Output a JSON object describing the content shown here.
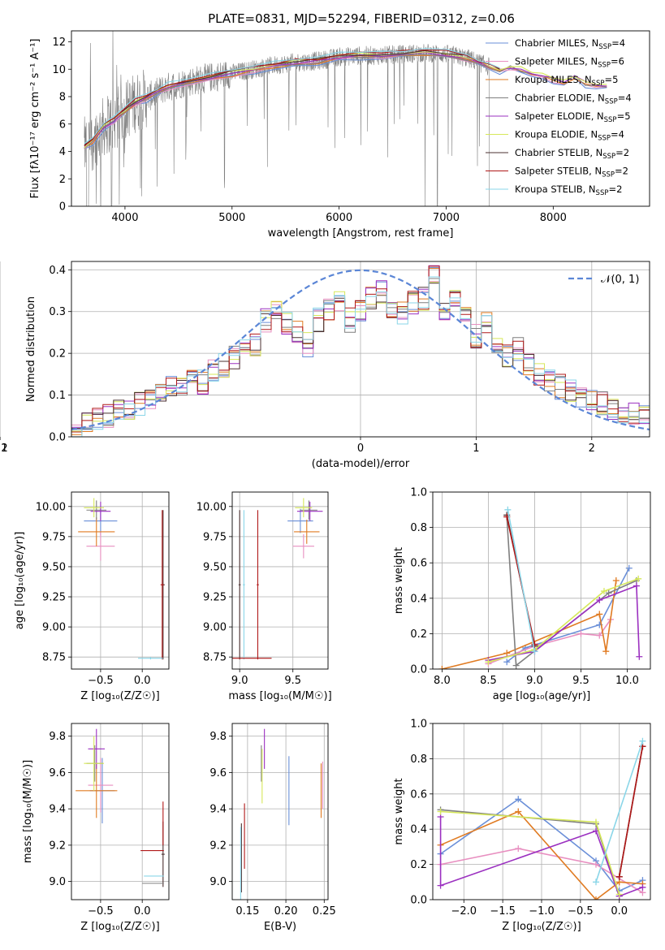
{
  "title": "PLATE=0831, MJD=52294, FIBERID=0312, z=0.06",
  "colors": {
    "Chabrier MILES": "#6a8fd8",
    "Salpeter MILES": "#e88fc0",
    "Kroupa MILES": "#e07b22",
    "Chabrier ELODIE": "#7f7f7f",
    "Salpeter ELODIE": "#9b30c0",
    "Kroupa ELODIE": "#d6e85a",
    "Chabrier STELIB": "#4b3030",
    "Salpeter STELIB": "#b01818",
    "Kroupa STELIB": "#8ad6e8",
    "gaussian": "#5b86d6",
    "observed": "#808080",
    "grid": "#b0b0b0"
  },
  "chart_data": [
    {
      "id": "spectrum",
      "type": "line",
      "title": "PLATE=0831, MJD=52294, FIBERID=0312, z=0.06",
      "xlabel": "wavelength [Angstrom, rest frame]",
      "ylabel": "Flux [f_λ 10^-17 erg cm^-2 s^-1 A^-1]",
      "xlim": [
        3500,
        8900
      ],
      "ylim": [
        0,
        12.8
      ],
      "xticks": [
        "4000",
        "5000",
        "6000",
        "7000",
        "8000"
      ],
      "yticks": [
        "0",
        "2",
        "4",
        "6",
        "8",
        "10",
        "12"
      ],
      "grid": false,
      "legend_position": "right",
      "legend": [
        {
          "label": "Chabrier MILES, N",
          "sub": "SSP",
          "tail": "=4",
          "color": "#6a8fd8"
        },
        {
          "label": "Salpeter MILES, N",
          "sub": "SSP",
          "tail": "=6",
          "color": "#e88fc0"
        },
        {
          "label": "Kroupa MILES, N",
          "sub": "SSP",
          "tail": "=5",
          "color": "#e07b22"
        },
        {
          "label": "Chabrier ELODIE, N",
          "sub": "SSP",
          "tail": "=4",
          "color": "#7f7f7f"
        },
        {
          "label": "Salpeter ELODIE, N",
          "sub": "SSP",
          "tail": "=5",
          "color": "#9b30c0"
        },
        {
          "label": "Kroupa ELODIE, N",
          "sub": "SSP",
          "tail": "=4",
          "color": "#d6e85a"
        },
        {
          "label": "Chabrier STELIB, N",
          "sub": "SSP",
          "tail": "=2",
          "color": "#4b3030"
        },
        {
          "label": "Salpeter STELIB, N",
          "sub": "SSP",
          "tail": "=2",
          "color": "#b01818"
        },
        {
          "label": "Kroupa STELIB, N",
          "sub": "SSP",
          "tail": "=2",
          "color": "#8ad6e8"
        }
      ],
      "model_curve": {
        "x": [
          3620,
          3700,
          3800,
          3900,
          4000,
          4100,
          4200,
          4300,
          4400,
          4600,
          4800,
          5000,
          5200,
          5400,
          5600,
          5800,
          6000,
          6200,
          6400,
          6600,
          6800,
          7000,
          7200,
          7300,
          7400,
          7500,
          7600,
          7700,
          7800,
          7900,
          8000,
          8100,
          8200,
          8300,
          8400,
          8500
        ],
        "y": [
          4.3,
          4.8,
          5.8,
          6.3,
          7.0,
          7.6,
          7.9,
          8.3,
          8.7,
          9.1,
          9.4,
          9.7,
          10.0,
          10.3,
          10.5,
          10.6,
          10.9,
          11.0,
          11.0,
          11.1,
          11.2,
          11.1,
          10.8,
          10.5,
          10.2,
          9.9,
          10.2,
          10.0,
          9.7,
          9.6,
          9.3,
          9.1,
          9.5,
          9.0,
          8.9,
          8.8
        ]
      }
    },
    {
      "id": "residual-hist",
      "type": "line",
      "xlabel": "(data-model)/error",
      "ylabel": "Normed distribution",
      "xlim": [
        -2.5,
        2.5
      ],
      "ylim": [
        0,
        0.42
      ],
      "xticks": [
        "−2",
        "−1",
        "0",
        "1",
        "2"
      ],
      "yticks": [
        "0.0",
        "0.1",
        "0.2",
        "0.3",
        "0.4"
      ],
      "grid": true,
      "legend_position": "top-right",
      "legend_label": "𝒩(0, 1)",
      "hist_template": [
        0.03,
        0.035,
        0.04,
        0.05,
        0.06,
        0.065,
        0.08,
        0.09,
        0.1,
        0.12,
        0.12,
        0.15,
        0.13,
        0.16,
        0.17,
        0.19,
        0.21,
        0.22,
        0.28,
        0.3,
        0.27,
        0.25,
        0.22,
        0.28,
        0.3,
        0.32,
        0.28,
        0.3,
        0.33,
        0.35,
        0.31,
        0.3,
        0.32,
        0.33,
        0.38,
        0.3,
        0.34,
        0.29,
        0.24,
        0.27,
        0.23,
        0.19,
        0.21,
        0.17,
        0.15,
        0.13,
        0.12,
        0.11,
        0.1,
        0.09,
        0.08,
        0.07,
        0.06,
        0.055,
        0.05
      ]
    },
    {
      "id": "age-vs-Z",
      "type": "scatter",
      "xlabel": "Z [log₁₀(Z/Z☉)]",
      "ylabel": "age  [log₁₀(age/yr)]",
      "xlim": [
        -0.85,
        0.32
      ],
      "ylim": [
        8.65,
        10.12
      ],
      "xticks": [
        -0.5,
        0.0
      ],
      "xticklabels": [
        "−0.5",
        "0.0"
      ],
      "yticks": [
        8.75,
        9.0,
        9.25,
        9.5,
        9.75,
        10.0
      ],
      "yticklabels": [
        "8.75",
        "9.00",
        "9.25",
        "9.50",
        "9.75",
        "10.00"
      ],
      "grid": true,
      "points": [
        {
          "series": "Chabrier MILES",
          "x": -0.5,
          "xerr": 0.2,
          "y": 9.88,
          "yerr": 0.12
        },
        {
          "series": "Salpeter MILES",
          "x": -0.5,
          "xerr": 0.17,
          "y": 9.67,
          "yerr": 0.12
        },
        {
          "series": "Kroupa MILES",
          "x": -0.55,
          "xerr": 0.22,
          "y": 9.79,
          "yerr": 0.12
        },
        {
          "series": "Chabrier ELODIE",
          "x": -0.55,
          "xerr": 0.12,
          "y": 9.97,
          "yerr": 0.08
        },
        {
          "series": "Salpeter ELODIE",
          "x": -0.5,
          "xerr": 0.12,
          "y": 9.96,
          "yerr": 0.08
        },
        {
          "series": "Kroupa ELODIE",
          "x": -0.58,
          "xerr": 0.12,
          "y": 9.99,
          "yerr": 0.08
        },
        {
          "series": "Chabrier STELIB",
          "x": 0.25,
          "xerr": 0.02,
          "y": 9.35,
          "yerr": 0.62
        },
        {
          "series": "Salpeter STELIB",
          "x": 0.24,
          "xerr": 0.02,
          "y": 9.35,
          "yerr": 0.62
        },
        {
          "series": "Kroupa STELIB",
          "x": 0.1,
          "xerr": 0.15,
          "y": 8.74,
          "yerr": 0.01
        }
      ]
    },
    {
      "id": "age-vs-mass",
      "type": "scatter",
      "xlabel": "mass [log₁₀(M/M☉)]",
      "ylabel": "",
      "xlim": [
        8.93,
        9.83
      ],
      "ylim": [
        8.65,
        10.12
      ],
      "xticks": [
        9.0,
        9.5
      ],
      "xticklabels": [
        "9.0",
        "9.5"
      ],
      "yticks": [
        8.75,
        9.0,
        9.25,
        9.5,
        9.75,
        10.0
      ],
      "yticklabels": [
        "8.75",
        "9.00",
        "9.25",
        "9.50",
        "9.75",
        "10.00"
      ],
      "grid": true,
      "points": [
        {
          "series": "Chabrier MILES",
          "x": 9.57,
          "xerr": 0.12,
          "y": 9.88,
          "yerr": 0.1
        },
        {
          "series": "Salpeter MILES",
          "x": 9.6,
          "xerr": 0.1,
          "y": 9.67,
          "yerr": 0.1
        },
        {
          "series": "Kroupa MILES",
          "x": 9.63,
          "xerr": 0.12,
          "y": 9.79,
          "yerr": 0.1
        },
        {
          "series": "Chabrier ELODIE",
          "x": 9.65,
          "xerr": 0.08,
          "y": 9.97,
          "yerr": 0.08
        },
        {
          "series": "Salpeter ELODIE",
          "x": 9.66,
          "xerr": 0.12,
          "y": 9.96,
          "yerr": 0.08
        },
        {
          "series": "Kroupa ELODIE",
          "x": 9.6,
          "xerr": 0.08,
          "y": 9.99,
          "yerr": 0.08
        },
        {
          "series": "Chabrier STELIB",
          "x": 9.0,
          "xerr": 0.01,
          "y": 9.35,
          "yerr": 0.62
        },
        {
          "series": "Salpeter STELIB",
          "x": 9.17,
          "xerr": 0.01,
          "y": 9.35,
          "yerr": 0.62
        },
        {
          "series": "Kroupa STELIB",
          "x": 9.04,
          "xerr": 0.01,
          "y": 9.35,
          "yerr": 0.62
        },
        {
          "series": "Salpeter STELIB",
          "x": 9.1,
          "xerr": 0.2,
          "y": 8.74,
          "yerr": 0.0
        }
      ]
    },
    {
      "id": "weight-vs-age",
      "type": "line",
      "xlabel": "age  [log₁₀(age/yr)]",
      "ylabel": "mass weight",
      "xlim": [
        7.9,
        10.25
      ],
      "ylim": [
        0,
        1.0
      ],
      "xticks": [
        8.0,
        8.5,
        9.0,
        9.5,
        10.0
      ],
      "xticklabels": [
        "8.0",
        "8.5",
        "9.0",
        "9.5",
        "10.0"
      ],
      "yticks": [
        0,
        0.2,
        0.4,
        0.6,
        0.8,
        1.0
      ],
      "yticklabels": [
        "0.0",
        "0.2",
        "0.4",
        "0.6",
        "0.8",
        "1.0"
      ],
      "grid": true,
      "series": [
        {
          "name": "Chabrier MILES",
          "x": [
            8.7,
            8.9,
            9.7,
            10.02
          ],
          "y": [
            0.04,
            0.12,
            0.25,
            0.57
          ]
        },
        {
          "name": "Salpeter MILES",
          "x": [
            8.5,
            9.0,
            9.5,
            9.7,
            9.82
          ],
          "y": [
            0.03,
            0.13,
            0.2,
            0.19,
            0.28
          ]
        },
        {
          "name": "Kroupa MILES",
          "x": [
            8.0,
            8.7,
            9.7,
            9.77,
            9.88
          ],
          "y": [
            0.0,
            0.09,
            0.31,
            0.1,
            0.5
          ]
        },
        {
          "name": "Chabrier ELODIE",
          "x": [
            8.7,
            8.8,
            9.8,
            10.1
          ],
          "y": [
            0.86,
            0.02,
            0.43,
            0.5
          ]
        },
        {
          "name": "Salpeter ELODIE",
          "x": [
            8.5,
            9.0,
            9.7,
            10.1,
            10.13
          ],
          "y": [
            0.05,
            0.1,
            0.39,
            0.47,
            0.07
          ]
        },
        {
          "name": "Kroupa ELODIE",
          "x": [
            8.5,
            9.0,
            9.75,
            10.12
          ],
          "y": [
            0.04,
            0.11,
            0.44,
            0.51
          ]
        },
        {
          "name": "Chabrier STELIB",
          "x": [
            8.7,
            9.0
          ],
          "y": [
            0.87,
            0.13
          ]
        },
        {
          "name": "Salpeter STELIB",
          "x": [
            8.7,
            9.0
          ],
          "y": [
            0.86,
            0.14
          ]
        },
        {
          "name": "Kroupa STELIB",
          "x": [
            8.71,
            9.0
          ],
          "y": [
            0.9,
            0.1
          ]
        }
      ]
    },
    {
      "id": "mass-vs-Z",
      "type": "scatter",
      "xlabel": "Z [log₁₀(Z/Z☉)]",
      "ylabel": "mass [log₁₀(M/M☉)]",
      "xlim": [
        -0.85,
        0.32
      ],
      "ylim": [
        8.9,
        9.87
      ],
      "xticks": [
        -0.5,
        0.0
      ],
      "xticklabels": [
        "−0.5",
        "0.0"
      ],
      "yticks": [
        9.0,
        9.2,
        9.4,
        9.6,
        9.8
      ],
      "yticklabels": [
        "9.0",
        "9.2",
        "9.4",
        "9.6",
        "9.8"
      ],
      "grid": true,
      "points": [
        {
          "series": "Chabrier MILES",
          "x": -0.48,
          "xerr": 0.15,
          "y": 9.5,
          "yerr": 0.18
        },
        {
          "series": "Salpeter MILES",
          "x": -0.5,
          "xerr": 0.15,
          "y": 9.53,
          "yerr": 0.15
        },
        {
          "series": "Kroupa MILES",
          "x": -0.55,
          "xerr": 0.25,
          "y": 9.5,
          "yerr": 0.15
        },
        {
          "series": "Chabrier ELODIE",
          "x": -0.57,
          "xerr": 0.1,
          "y": 9.65,
          "yerr": 0.1
        },
        {
          "series": "Salpeter ELODIE",
          "x": -0.55,
          "xerr": 0.1,
          "y": 9.73,
          "yerr": 0.11
        },
        {
          "series": "Kroupa ELODIE",
          "x": -0.58,
          "xerr": 0.12,
          "y": 9.65,
          "yerr": 0.15
        },
        {
          "series": "Chabrier STELIB",
          "x": 0.25,
          "xerr": 0.02,
          "y": 9.15,
          "yerr": 0.18
        },
        {
          "series": "Salpeter STELIB",
          "x": 0.12,
          "xerr": 0.14,
          "y": 9.17,
          "yerr": 0.0
        },
        {
          "series": "Kroupa STELIB",
          "x": 0.14,
          "xerr": 0.12,
          "y": 9.03,
          "yerr": 0.0
        },
        {
          "series": "Chabrier ELODIE",
          "x": 0.13,
          "xerr": 0.13,
          "y": 8.99,
          "yerr": 0.0
        },
        {
          "series": "Salpeter STELIB",
          "x": 0.25,
          "xerr": 0.0,
          "y": 9.32,
          "yerr": 0.12
        }
      ]
    },
    {
      "id": "mass-vs-ebv",
      "type": "scatter",
      "xlabel": "E(B-V)",
      "ylabel": "",
      "xlim": [
        0.13,
        0.255
      ],
      "ylim": [
        8.9,
        9.87
      ],
      "xticks": [
        0.15,
        0.2,
        0.25
      ],
      "xticklabels": [
        "0.15",
        "0.20",
        "0.25"
      ],
      "yticks": [
        9.0,
        9.2,
        9.4,
        9.6,
        9.8
      ],
      "yticklabels": [
        "9.0",
        "9.2",
        "9.4",
        "9.6",
        "9.8"
      ],
      "grid": true,
      "points": [
        {
          "series": "Chabrier MILES",
          "x": 0.204,
          "xerr": 0.0,
          "y": 9.5,
          "yerr": 0.19
        },
        {
          "series": "Salpeter MILES",
          "x": 0.248,
          "xerr": 0.0,
          "y": 9.53,
          "yerr": 0.13
        },
        {
          "series": "Kroupa MILES",
          "x": 0.246,
          "xerr": 0.0,
          "y": 9.5,
          "yerr": 0.15
        },
        {
          "series": "Chabrier ELODIE",
          "x": 0.168,
          "xerr": 0.0,
          "y": 9.65,
          "yerr": 0.1
        },
        {
          "series": "Salpeter ELODIE",
          "x": 0.172,
          "xerr": 0.0,
          "y": 9.73,
          "yerr": 0.11
        },
        {
          "series": "Kroupa ELODIE",
          "x": 0.169,
          "xerr": 0.0,
          "y": 9.58,
          "yerr": 0.15
        },
        {
          "series": "Chabrier STELIB",
          "x": 0.142,
          "xerr": 0.0,
          "y": 9.13,
          "yerr": 0.19
        },
        {
          "series": "Salpeter STELIB",
          "x": 0.146,
          "xerr": 0.0,
          "y": 9.25,
          "yerr": 0.18
        },
        {
          "series": "Kroupa STELIB",
          "x": 0.141,
          "xerr": 0.0,
          "y": 9.1,
          "yerr": 0.2
        }
      ]
    },
    {
      "id": "weight-vs-Z",
      "type": "line",
      "xlabel": "Z [log₁₀(Z/Z☉)]",
      "ylabel": "mass weight",
      "xlim": [
        -2.4,
        0.4
      ],
      "ylim": [
        0,
        1.0
      ],
      "xticks": [
        -2.0,
        -1.5,
        -1.0,
        -0.5,
        0.0
      ],
      "xticklabels": [
        "−2.0",
        "−1.5",
        "−1.0",
        "−0.5",
        "0.0"
      ],
      "yticks": [
        0,
        0.2,
        0.4,
        0.6,
        0.8,
        1.0
      ],
      "yticklabels": [
        "0.0",
        "0.2",
        "0.4",
        "0.6",
        "0.8",
        "1.0"
      ],
      "grid": true,
      "series": [
        {
          "name": "Chabrier MILES",
          "x": [
            -2.3,
            -1.3,
            -0.3,
            0.0,
            0.3
          ],
          "y": [
            0.26,
            0.57,
            0.22,
            0.05,
            0.11
          ]
        },
        {
          "name": "Salpeter MILES",
          "x": [
            -2.3,
            -1.3,
            -0.3,
            0.3
          ],
          "y": [
            0.2,
            0.29,
            0.2,
            0.04
          ]
        },
        {
          "name": "Kroupa MILES",
          "x": [
            -2.3,
            -1.3,
            -0.3,
            0.0,
            0.3
          ],
          "y": [
            0.31,
            0.5,
            0.0,
            0.1,
            0.09
          ]
        },
        {
          "name": "Chabrier ELODIE",
          "x": [
            -2.3,
            -0.3,
            0.0
          ],
          "y": [
            0.51,
            0.43,
            0.02
          ]
        },
        {
          "name": "Salpeter ELODIE",
          "x": [
            -2.3,
            -2.3,
            -0.3,
            0.0,
            0.3
          ],
          "y": [
            0.47,
            0.08,
            0.39,
            0.02,
            0.07
          ]
        },
        {
          "name": "Kroupa ELODIE",
          "x": [
            -2.3,
            -0.3,
            0.0
          ],
          "y": [
            0.5,
            0.44,
            0.03
          ]
        },
        {
          "name": "Chabrier STELIB",
          "x": [
            0.0,
            0.3
          ],
          "y": [
            0.13,
            0.87
          ]
        },
        {
          "name": "Salpeter STELIB",
          "x": [
            0.0,
            0.3
          ],
          "y": [
            0.13,
            0.87
          ]
        },
        {
          "name": "Kroupa STELIB",
          "x": [
            -0.3,
            0.3
          ],
          "y": [
            0.1,
            0.9
          ]
        }
      ]
    }
  ]
}
